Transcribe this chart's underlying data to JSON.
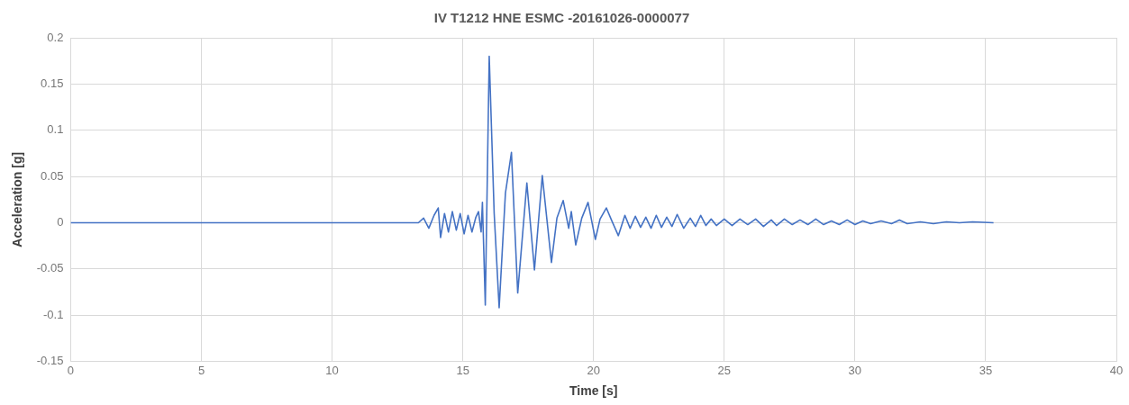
{
  "chart_data": {
    "type": "line",
    "title": "IV T1212 HNE ESMC -20161026-0000077",
    "xlabel": "Time [s]",
    "ylabel": "Acceleration [g]",
    "x": [
      0,
      13.3,
      13.5,
      13.7,
      13.9,
      14.06,
      14.15,
      14.3,
      14.45,
      14.6,
      14.75,
      14.9,
      15.05,
      15.2,
      15.35,
      15.5,
      15.6,
      15.7,
      15.75,
      15.86,
      16.01,
      16.2,
      16.39,
      16.63,
      16.86,
      17.1,
      17.45,
      17.74,
      18.04,
      18.39,
      18.6,
      18.84,
      19.05,
      19.15,
      19.32,
      19.55,
      19.79,
      20.07,
      20.25,
      20.49,
      20.7,
      20.95,
      21.2,
      21.4,
      21.6,
      21.8,
      22.0,
      22.2,
      22.4,
      22.6,
      22.8,
      23.0,
      23.2,
      23.45,
      23.7,
      23.9,
      24.1,
      24.3,
      24.5,
      24.7,
      25.0,
      25.3,
      25.6,
      25.9,
      26.2,
      26.5,
      26.8,
      27.0,
      27.3,
      27.6,
      27.9,
      28.2,
      28.5,
      28.8,
      29.1,
      29.4,
      29.7,
      30.0,
      30.3,
      30.6,
      31.0,
      31.4,
      31.7,
      32.0,
      32.5,
      33.0,
      33.5,
      34.0,
      34.5,
      35.3
    ],
    "series": [
      {
        "color": "#4472c4",
        "values": [
          0,
          0,
          0.005,
          -0.006,
          0.008,
          0.016,
          -0.016,
          0.01,
          -0.01,
          0.012,
          -0.008,
          0.01,
          -0.012,
          0.008,
          -0.01,
          0.006,
          0.012,
          -0.01,
          0.022,
          -0.089,
          0.18,
          0.01,
          -0.092,
          0.032,
          0.076,
          -0.076,
          0.043,
          -0.051,
          0.051,
          -0.043,
          0.005,
          0.024,
          -0.006,
          0.012,
          -0.024,
          0.005,
          0.022,
          -0.018,
          0.004,
          0.016,
          0.002,
          -0.014,
          0.008,
          -0.006,
          0.007,
          -0.005,
          0.006,
          -0.006,
          0.008,
          -0.005,
          0.006,
          -0.004,
          0.009,
          -0.006,
          0.005,
          -0.004,
          0.008,
          -0.003,
          0.004,
          -0.003,
          0.004,
          -0.003,
          0.004,
          -0.002,
          0.004,
          -0.004,
          0.003,
          -0.003,
          0.004,
          -0.002,
          0.003,
          -0.002,
          0.004,
          -0.002,
          0.002,
          -0.002,
          0.003,
          -0.002,
          0.002,
          -0.001,
          0.002,
          -0.001,
          0.003,
          -0.001,
          0.001,
          -0.001,
          0.001,
          0,
          0.001,
          0
        ]
      }
    ],
    "xlim": [
      0,
      40
    ],
    "xticks": [
      0,
      5,
      10,
      15,
      20,
      25,
      30,
      35,
      40
    ],
    "ylim": [
      -0.15,
      0.2
    ],
    "yticks": [
      -0.15,
      -0.1,
      -0.05,
      0,
      0.05,
      0.1,
      0.15,
      0.2
    ],
    "grid": true,
    "legend": false,
    "marker": "none",
    "line_style": "solid"
  }
}
